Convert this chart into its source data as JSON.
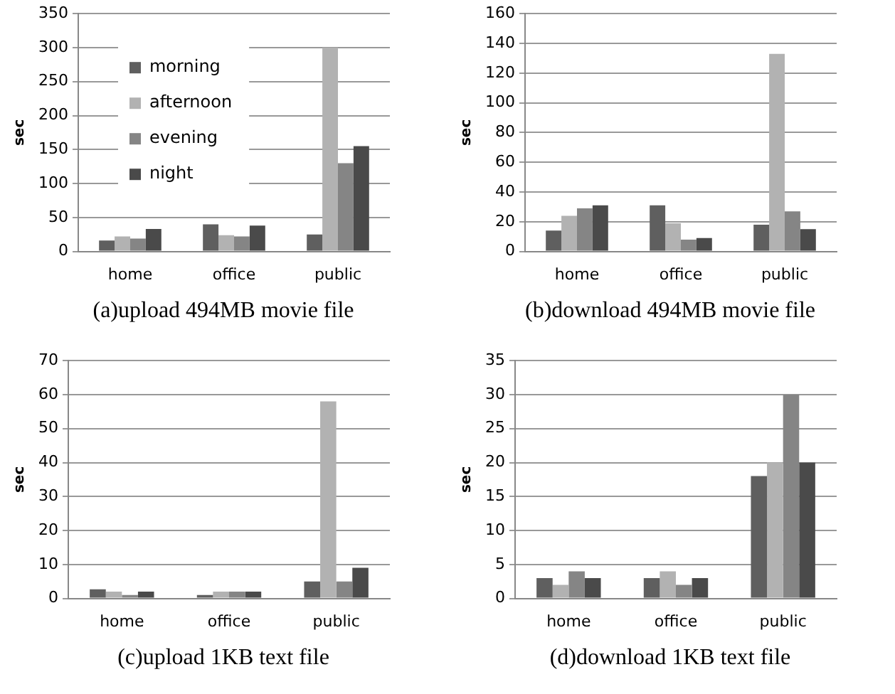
{
  "chart_data": [
    {
      "type": "bar",
      "title": "(a)upload 494MB movie file",
      "ylabel": "sec",
      "categories": [
        "home",
        "office",
        "public"
      ],
      "series": [
        {
          "name": "morning",
          "color": "#5f5f5f",
          "values": [
            16,
            40,
            25
          ]
        },
        {
          "name": "afternoon",
          "color": "#b2b2b2",
          "values": [
            22,
            24,
            300
          ]
        },
        {
          "name": "evening",
          "color": "#858585",
          "values": [
            19,
            22,
            130
          ]
        },
        {
          "name": "night",
          "color": "#4a4a4a",
          "values": [
            33,
            38,
            155
          ]
        }
      ],
      "ylim": [
        0,
        350
      ],
      "yticks": [
        0,
        50,
        100,
        150,
        200,
        250,
        300,
        350
      ],
      "grid": "y",
      "legend": "top left"
    },
    {
      "type": "bar",
      "title": "(b)download 494MB movie file",
      "ylabel": "sec",
      "categories": [
        "home",
        "office",
        "public"
      ],
      "series": [
        {
          "color": "#5f5f5f",
          "values": [
            14,
            31,
            18
          ]
        },
        {
          "color": "#b2b2b2",
          "values": [
            24,
            19,
            133
          ]
        },
        {
          "color": "#858585",
          "values": [
            29,
            8,
            27
          ]
        },
        {
          "color": "#4a4a4a",
          "values": [
            31,
            9,
            15
          ]
        }
      ],
      "ylim": [
        0,
        160
      ],
      "yticks": [
        0,
        20,
        40,
        60,
        80,
        100,
        120,
        140,
        160
      ],
      "grid": "y"
    },
    {
      "type": "bar",
      "title": "(c)upload 1KB text file",
      "ylabel": "sec",
      "categories": [
        "home",
        "office",
        "public"
      ],
      "series": [
        {
          "color": "#5f5f5f",
          "values": [
            2.7,
            1,
            5
          ]
        },
        {
          "color": "#b2b2b2",
          "values": [
            2,
            2,
            58
          ]
        },
        {
          "color": "#858585",
          "values": [
            1,
            2,
            5
          ]
        },
        {
          "color": "#4a4a4a",
          "values": [
            2,
            2,
            9
          ]
        }
      ],
      "ylim": [
        0,
        70
      ],
      "yticks": [
        0,
        10,
        20,
        30,
        40,
        50,
        60,
        70
      ],
      "grid": "y"
    },
    {
      "type": "bar",
      "title": "(d)download 1KB text file",
      "ylabel": "sec",
      "categories": [
        "home",
        "office",
        "public"
      ],
      "series": [
        {
          "color": "#5f5f5f",
          "values": [
            3,
            3,
            18
          ]
        },
        {
          "color": "#b2b2b2",
          "values": [
            2,
            4,
            20
          ]
        },
        {
          "color": "#858585",
          "values": [
            4,
            2,
            30
          ]
        },
        {
          "color": "#4a4a4a",
          "values": [
            3,
            3,
            20
          ]
        }
      ],
      "ylim": [
        0,
        35
      ],
      "yticks": [
        0,
        5,
        10,
        15,
        20,
        25,
        30,
        35
      ],
      "grid": "y"
    }
  ]
}
